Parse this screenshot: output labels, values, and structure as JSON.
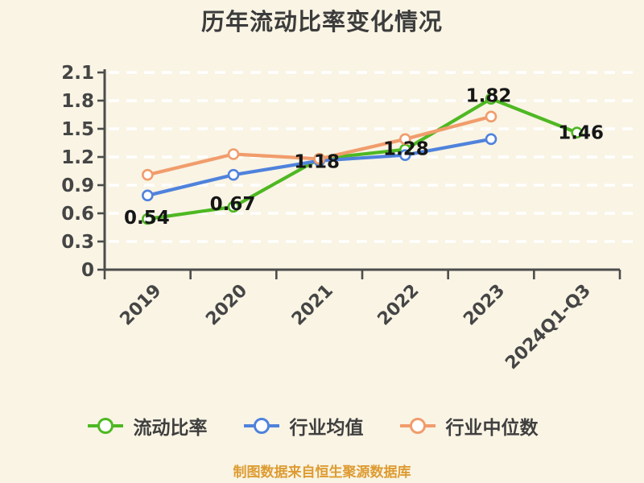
{
  "chart_data": {
    "type": "line",
    "title": "历年流动比率变化情况",
    "footer": "制图数据来自恒生聚源数据库",
    "categories": [
      "2019",
      "2020",
      "2021",
      "2022",
      "2023",
      "2024Q1-Q3"
    ],
    "series": [
      {
        "name": "流动比率",
        "color": "#4eb822",
        "values": [
          0.54,
          0.67,
          1.18,
          1.28,
          1.82,
          1.46
        ],
        "data_labels": [
          "0.54",
          "0.67",
          "1.18",
          "1.28",
          "1.82",
          "1.46"
        ],
        "label_offsets": [
          [
            -1,
            -2
          ],
          [
            -1,
            -4
          ],
          [
            -3,
            3
          ],
          [
            1,
            -1
          ],
          [
            -3,
            -4
          ],
          [
            5,
            0
          ]
        ]
      },
      {
        "name": "行业均值",
        "color": "#4f82dc",
        "values": [
          0.79,
          1.01,
          1.16,
          1.22,
          1.39,
          null
        ]
      },
      {
        "name": "行业中位数",
        "color": "#f19c6c",
        "values": [
          1.01,
          1.23,
          1.18,
          1.39,
          1.63,
          null
        ]
      }
    ],
    "ylim": [
      0,
      2.1
    ],
    "yticks": [
      {
        "value": 0.0,
        "label": "0"
      },
      {
        "value": 0.3,
        "label": "0.3"
      },
      {
        "value": 0.6,
        "label": "0.6"
      },
      {
        "value": 0.9,
        "label": "0.9"
      },
      {
        "value": 1.2,
        "label": "1.2"
      },
      {
        "value": 1.5,
        "label": "1.5"
      },
      {
        "value": 1.8,
        "label": "1.8"
      },
      {
        "value": 2.1,
        "label": "2.1"
      }
    ],
    "grid": "horizontal-dashed",
    "legend_position": "bottom",
    "marker": "circle-white-fill",
    "colors": {
      "background": "#f9f4e4",
      "gridline": "#ffffff",
      "axis": "#4c4c4c",
      "axis_label": "#454545",
      "data_label": "#161616",
      "title": "#3c3c3c",
      "footer": "#dd9b31"
    }
  }
}
